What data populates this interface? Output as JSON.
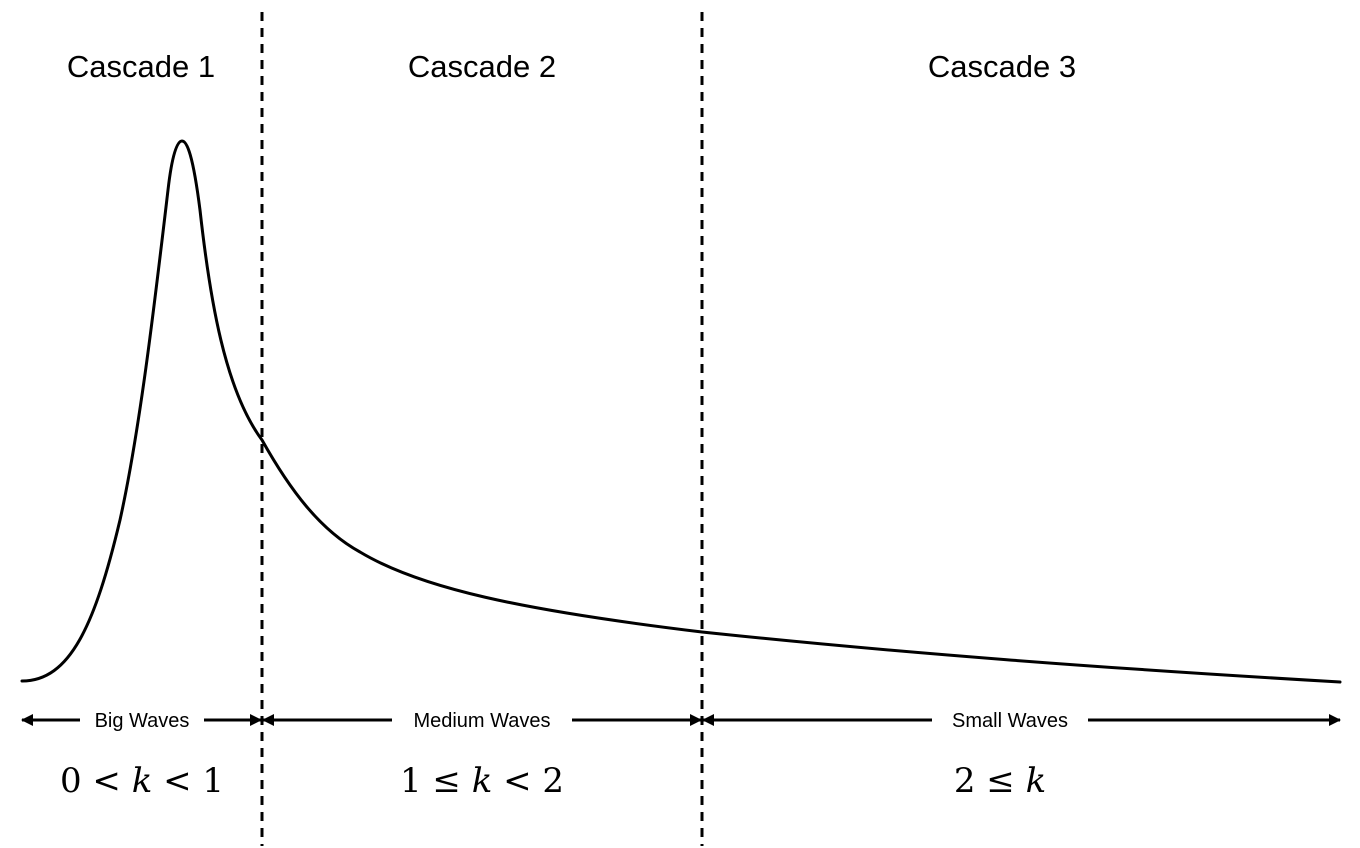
{
  "cascades": [
    {
      "title": "Cascade 1",
      "band_label": "Big Waves",
      "formula": {
        "left": "0 <",
        "var": "k",
        "right": "< 1"
      }
    },
    {
      "title": "Cascade 2",
      "band_label": "Medium Waves",
      "formula": {
        "left": "1 ≤",
        "var": "k",
        "right": "< 2"
      }
    },
    {
      "title": "Cascade 3",
      "band_label": "Small Waves",
      "formula": {
        "left": "2 ≤",
        "var": "k",
        "right": ""
      }
    }
  ],
  "colors": {
    "ink": "#000000",
    "background": "#ffffff"
  }
}
